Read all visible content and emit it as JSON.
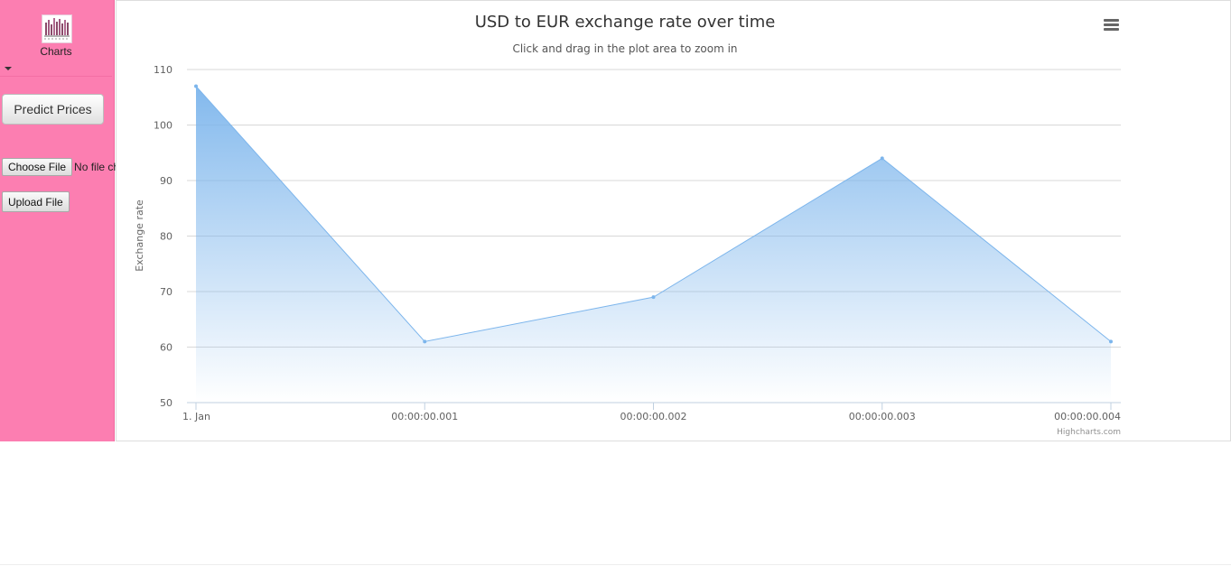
{
  "sidebar": {
    "charts_label": "Charts",
    "charts_icon": "bar-chart-icon",
    "dropdown_icon": "caret-down-icon",
    "predict_button": "Predict Prices",
    "choose_file_button": "Choose File",
    "file_status": "No file chosen",
    "upload_button": "Upload File"
  },
  "chart": {
    "title": "USD to EUR exchange rate over time",
    "subtitle": "Click and drag in the plot area to zoom in",
    "credits": "Highcharts.com",
    "menu_icon": "hamburger-menu-icon"
  },
  "colors": {
    "sidebar_bg": "#fc7eb1",
    "series": "#7cb5ec"
  },
  "chart_data": {
    "type": "area",
    "title": "USD to EUR exchange rate over time",
    "subtitle": "Click and drag in the plot area to zoom in",
    "xlabel": "",
    "ylabel": "Exchange rate",
    "x": [
      "1. Jan",
      "00:00:00.001",
      "00:00:00.002",
      "00:00:00.003",
      "00:00:00.004"
    ],
    "values": [
      107,
      61,
      69,
      94,
      61
    ],
    "ylim": [
      50,
      110
    ],
    "yticks": [
      50,
      60,
      70,
      80,
      90,
      100,
      110
    ],
    "grid": true,
    "legend": "none"
  }
}
